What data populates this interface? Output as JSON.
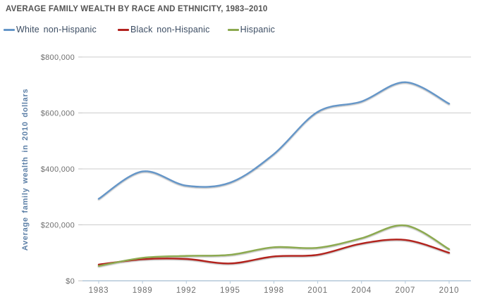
{
  "chart_data": {
    "type": "line",
    "title": "AVERAGE FAMILY WEALTH BY RACE AND ETHNICITY, 1983–2010",
    "ylabel": "Average family wealth in 2010 dollars",
    "xlabel": "",
    "categories": [
      "1983",
      "1989",
      "1992",
      "1995",
      "1998",
      "2001",
      "2004",
      "2007",
      "2010"
    ],
    "series": [
      {
        "name": "White non-Hispanic",
        "color": "#6596c8",
        "values": [
          293000,
          391000,
          340000,
          351000,
          453000,
          604000,
          641000,
          710000,
          633000
        ]
      },
      {
        "name": "Black non-Hispanic",
        "color": "#b2221f",
        "values": [
          58000,
          77000,
          78000,
          62000,
          87000,
          93000,
          133000,
          146000,
          100000
        ]
      },
      {
        "name": "Hispanic",
        "color": "#8caa50",
        "values": [
          53000,
          82000,
          89000,
          93000,
          120000,
          118000,
          152000,
          198000,
          113000
        ]
      }
    ],
    "y_ticks": [
      {
        "value": 0,
        "label": "$0"
      },
      {
        "value": 200000,
        "label": "$200,000"
      },
      {
        "value": 400000,
        "label": "$400,000"
      },
      {
        "value": 600000,
        "label": "$600,000"
      },
      {
        "value": 800000,
        "label": "$800,000"
      }
    ],
    "ylim": [
      0,
      800000
    ],
    "grid": "horizontal",
    "legend_position": "top",
    "curve": "smooth-spline",
    "colors": {
      "background": "#ffffff",
      "grid": "#cccccc",
      "axis": "#b3c7d8",
      "y_tick_mark": "#c3c3c3",
      "tick_text": "#6e6e6e",
      "title_text": "#545454",
      "legend_text": "#3c4d63",
      "ylabel_text": "#5d80a7"
    }
  }
}
